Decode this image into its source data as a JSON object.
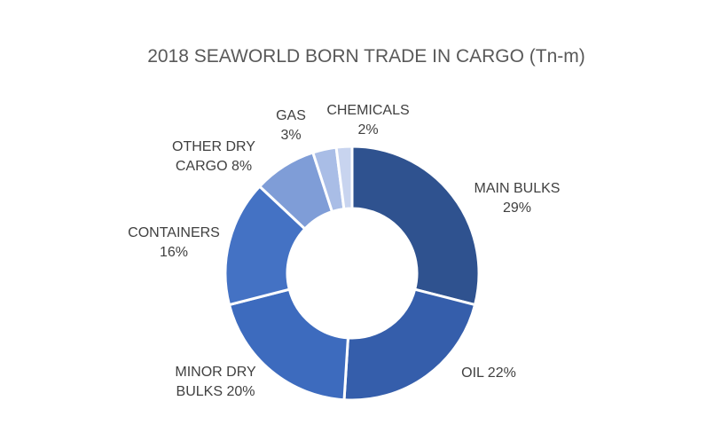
{
  "chart_data": {
    "type": "pie",
    "title": "2018 SEAWORLD BORN TRADE IN CARGO (Tn-m)",
    "donut": true,
    "legend": "none",
    "slices": [
      {
        "label": "MAIN BULKS",
        "value": 29,
        "label_lines": [
          "MAIN BULKS",
          "29%"
        ],
        "color": "#2f528f"
      },
      {
        "label": "OIL",
        "value": 22,
        "label_lines": [
          "OIL 22%"
        ],
        "color": "#355eab"
      },
      {
        "label": "MINOR DRY BULKS",
        "value": 20,
        "label_lines": [
          "MINOR DRY",
          "BULKS 20%"
        ],
        "color": "#3d6bbe"
      },
      {
        "label": "CONTAINERS",
        "value": 16,
        "label_lines": [
          "CONTAINERS",
          "16%"
        ],
        "color": "#4472c4"
      },
      {
        "label": "OTHER DRY CARGO",
        "value": 8,
        "label_lines": [
          "OTHER DRY",
          "CARGO 8%"
        ],
        "color": "#7f9dd7"
      },
      {
        "label": "GAS",
        "value": 3,
        "label_lines": [
          "GAS",
          "3%"
        ],
        "color": "#a9bde6"
      },
      {
        "label": "CHEMICALS",
        "value": 2,
        "label_lines": [
          "CHEMICALS",
          "2%"
        ],
        "color": "#c8d4ef"
      }
    ]
  }
}
